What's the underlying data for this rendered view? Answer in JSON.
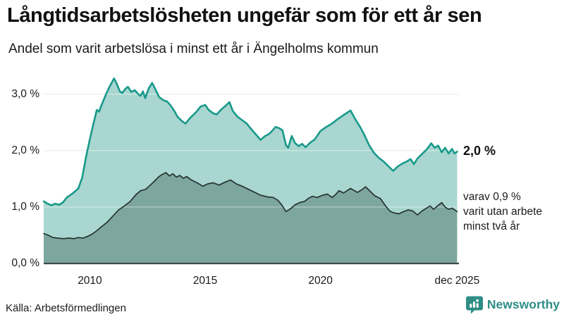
{
  "header": {
    "title": "Långtidsarbetslösheten ungefär som för ett år sen",
    "subtitle": "Andel som varit arbetslösa i minst ett år i Ängelholms kommun"
  },
  "chart_data": {
    "type": "area",
    "title": "Långtidsarbetslösheten ungefär som för ett år sen",
    "subtitle": "Andel som varit arbetslösa i minst ett år i Ängelholms kommun",
    "unit": "%",
    "x_domain": [
      2008.0,
      2026.0
    ],
    "ylim": [
      0.0,
      3.3
    ],
    "grid": "horizontal",
    "legend_position": "right-annotations",
    "colors": {
      "upper_line": "#18998a",
      "upper_fill": "#a9d6d0",
      "lower_line": "#25332f",
      "lower_fill": "#7da6a0",
      "axis_line": "#3e4d49",
      "grid_under": "#e2e2e2",
      "grid_over": "rgba(255,255,255,0.42)",
      "brand_teal": "#2e8e86"
    },
    "y_axis": {
      "ticks": [
        {
          "label": "3,0 %",
          "value": 3.0
        },
        {
          "label": "2,0 %",
          "value": 2.0
        },
        {
          "label": "1,0 %",
          "value": 1.0
        },
        {
          "label": "0,0 %",
          "value": 0.0
        }
      ]
    },
    "x_axis": {
      "ticks": [
        {
          "label": "2010",
          "year": 2010.0
        },
        {
          "label": "2015",
          "year": 2015.0
        },
        {
          "label": "2020",
          "year": 2020.0
        },
        {
          "label": "dec 2025",
          "year": 2025.92
        }
      ]
    },
    "annotations": {
      "primary_value_label": "2,0 %",
      "primary_value": 1.98,
      "secondary_lines": [
        "varav 0,9 %",
        "varit utan arbete",
        "minst två år"
      ],
      "secondary_value": 0.92
    },
    "series": [
      {
        "name": "Arbetslösa minst ett år",
        "points": [
          [
            2008.0,
            1.1
          ],
          [
            2008.17,
            1.06
          ],
          [
            2008.33,
            1.03
          ],
          [
            2008.5,
            1.06
          ],
          [
            2008.67,
            1.04
          ],
          [
            2008.83,
            1.08
          ],
          [
            2009.0,
            1.17
          ],
          [
            2009.25,
            1.24
          ],
          [
            2009.5,
            1.33
          ],
          [
            2009.67,
            1.52
          ],
          [
            2009.83,
            1.88
          ],
          [
            2010.0,
            2.2
          ],
          [
            2010.17,
            2.5
          ],
          [
            2010.3,
            2.72
          ],
          [
            2010.4,
            2.69
          ],
          [
            2010.55,
            2.85
          ],
          [
            2010.7,
            3.0
          ],
          [
            2010.85,
            3.13
          ],
          [
            2011.05,
            3.28
          ],
          [
            2011.15,
            3.2
          ],
          [
            2011.3,
            3.05
          ],
          [
            2011.4,
            3.02
          ],
          [
            2011.55,
            3.1
          ],
          [
            2011.65,
            3.13
          ],
          [
            2011.8,
            3.04
          ],
          [
            2011.95,
            3.07
          ],
          [
            2012.1,
            3.0
          ],
          [
            2012.2,
            2.97
          ],
          [
            2012.3,
            3.05
          ],
          [
            2012.4,
            2.93
          ],
          [
            2012.55,
            3.1
          ],
          [
            2012.7,
            3.2
          ],
          [
            2012.85,
            3.08
          ],
          [
            2013.0,
            2.95
          ],
          [
            2013.2,
            2.89
          ],
          [
            2013.35,
            2.87
          ],
          [
            2013.5,
            2.8
          ],
          [
            2013.65,
            2.71
          ],
          [
            2013.8,
            2.6
          ],
          [
            2014.0,
            2.52
          ],
          [
            2014.15,
            2.48
          ],
          [
            2014.35,
            2.58
          ],
          [
            2014.6,
            2.68
          ],
          [
            2014.8,
            2.78
          ],
          [
            2015.0,
            2.81
          ],
          [
            2015.15,
            2.72
          ],
          [
            2015.35,
            2.66
          ],
          [
            2015.5,
            2.64
          ],
          [
            2015.7,
            2.73
          ],
          [
            2015.9,
            2.8
          ],
          [
            2016.05,
            2.86
          ],
          [
            2016.2,
            2.7
          ],
          [
            2016.4,
            2.6
          ],
          [
            2016.6,
            2.54
          ],
          [
            2016.8,
            2.48
          ],
          [
            2017.0,
            2.38
          ],
          [
            2017.15,
            2.31
          ],
          [
            2017.4,
            2.19
          ],
          [
            2017.6,
            2.26
          ],
          [
            2017.75,
            2.29
          ],
          [
            2017.9,
            2.35
          ],
          [
            2018.05,
            2.42
          ],
          [
            2018.2,
            2.4
          ],
          [
            2018.35,
            2.36
          ],
          [
            2018.5,
            2.1
          ],
          [
            2018.6,
            2.05
          ],
          [
            2018.75,
            2.26
          ],
          [
            2018.9,
            2.13
          ],
          [
            2019.05,
            2.08
          ],
          [
            2019.2,
            2.12
          ],
          [
            2019.35,
            2.06
          ],
          [
            2019.55,
            2.14
          ],
          [
            2019.75,
            2.2
          ],
          [
            2020.0,
            2.35
          ],
          [
            2020.25,
            2.42
          ],
          [
            2020.5,
            2.48
          ],
          [
            2020.75,
            2.56
          ],
          [
            2021.0,
            2.63
          ],
          [
            2021.3,
            2.71
          ],
          [
            2021.5,
            2.56
          ],
          [
            2021.7,
            2.43
          ],
          [
            2021.9,
            2.28
          ],
          [
            2022.1,
            2.1
          ],
          [
            2022.3,
            1.97
          ],
          [
            2022.5,
            1.88
          ],
          [
            2022.75,
            1.8
          ],
          [
            2023.0,
            1.7
          ],
          [
            2023.15,
            1.64
          ],
          [
            2023.35,
            1.72
          ],
          [
            2023.55,
            1.77
          ],
          [
            2023.75,
            1.81
          ],
          [
            2023.9,
            1.85
          ],
          [
            2024.05,
            1.76
          ],
          [
            2024.2,
            1.86
          ],
          [
            2024.4,
            1.94
          ],
          [
            2024.6,
            2.02
          ],
          [
            2024.8,
            2.13
          ],
          [
            2024.95,
            2.05
          ],
          [
            2025.1,
            2.09
          ],
          [
            2025.25,
            1.97
          ],
          [
            2025.4,
            2.05
          ],
          [
            2025.55,
            1.95
          ],
          [
            2025.7,
            2.03
          ],
          [
            2025.8,
            1.95
          ],
          [
            2025.92,
            1.98
          ]
        ]
      },
      {
        "name": "varav utan arbete minst två år",
        "points": [
          [
            2008.0,
            0.53
          ],
          [
            2008.2,
            0.5
          ],
          [
            2008.4,
            0.46
          ],
          [
            2008.6,
            0.45
          ],
          [
            2008.85,
            0.44
          ],
          [
            2009.1,
            0.45
          ],
          [
            2009.3,
            0.44
          ],
          [
            2009.5,
            0.46
          ],
          [
            2009.7,
            0.45
          ],
          [
            2009.9,
            0.48
          ],
          [
            2010.1,
            0.52
          ],
          [
            2010.3,
            0.58
          ],
          [
            2010.5,
            0.65
          ],
          [
            2010.75,
            0.73
          ],
          [
            2011.0,
            0.84
          ],
          [
            2011.25,
            0.95
          ],
          [
            2011.5,
            1.02
          ],
          [
            2011.75,
            1.1
          ],
          [
            2012.0,
            1.22
          ],
          [
            2012.2,
            1.29
          ],
          [
            2012.4,
            1.31
          ],
          [
            2012.6,
            1.38
          ],
          [
            2012.8,
            1.46
          ],
          [
            2013.0,
            1.54
          ],
          [
            2013.15,
            1.58
          ],
          [
            2013.3,
            1.61
          ],
          [
            2013.45,
            1.55
          ],
          [
            2013.6,
            1.59
          ],
          [
            2013.75,
            1.53
          ],
          [
            2013.9,
            1.56
          ],
          [
            2014.05,
            1.51
          ],
          [
            2014.2,
            1.54
          ],
          [
            2014.4,
            1.48
          ],
          [
            2014.65,
            1.43
          ],
          [
            2014.9,
            1.37
          ],
          [
            2015.1,
            1.41
          ],
          [
            2015.35,
            1.43
          ],
          [
            2015.6,
            1.39
          ],
          [
            2015.85,
            1.44
          ],
          [
            2016.1,
            1.48
          ],
          [
            2016.35,
            1.41
          ],
          [
            2016.6,
            1.37
          ],
          [
            2016.85,
            1.32
          ],
          [
            2017.1,
            1.27
          ],
          [
            2017.4,
            1.21
          ],
          [
            2017.7,
            1.18
          ],
          [
            2017.95,
            1.17
          ],
          [
            2018.15,
            1.12
          ],
          [
            2018.3,
            1.05
          ],
          [
            2018.5,
            0.92
          ],
          [
            2018.7,
            0.97
          ],
          [
            2018.9,
            1.04
          ],
          [
            2019.1,
            1.08
          ],
          [
            2019.3,
            1.1
          ],
          [
            2019.5,
            1.16
          ],
          [
            2019.65,
            1.19
          ],
          [
            2019.85,
            1.17
          ],
          [
            2020.1,
            1.21
          ],
          [
            2020.3,
            1.23
          ],
          [
            2020.5,
            1.17
          ],
          [
            2020.65,
            1.22
          ],
          [
            2020.8,
            1.29
          ],
          [
            2021.0,
            1.25
          ],
          [
            2021.15,
            1.29
          ],
          [
            2021.3,
            1.33
          ],
          [
            2021.6,
            1.26
          ],
          [
            2021.8,
            1.31
          ],
          [
            2021.95,
            1.36
          ],
          [
            2022.15,
            1.28
          ],
          [
            2022.35,
            1.2
          ],
          [
            2022.6,
            1.15
          ],
          [
            2022.8,
            1.03
          ],
          [
            2023.0,
            0.93
          ],
          [
            2023.15,
            0.9
          ],
          [
            2023.4,
            0.88
          ],
          [
            2023.6,
            0.92
          ],
          [
            2023.8,
            0.95
          ],
          [
            2024.0,
            0.93
          ],
          [
            2024.2,
            0.86
          ],
          [
            2024.4,
            0.93
          ],
          [
            2024.55,
            0.97
          ],
          [
            2024.75,
            1.02
          ],
          [
            2024.9,
            0.96
          ],
          [
            2025.1,
            1.03
          ],
          [
            2025.25,
            1.08
          ],
          [
            2025.4,
            1.0
          ],
          [
            2025.55,
            0.96
          ],
          [
            2025.7,
            0.98
          ],
          [
            2025.92,
            0.92
          ]
        ]
      }
    ]
  },
  "footer": {
    "source": "Källa: Arbetsförmedlingen",
    "brand": "Newsworthy"
  }
}
